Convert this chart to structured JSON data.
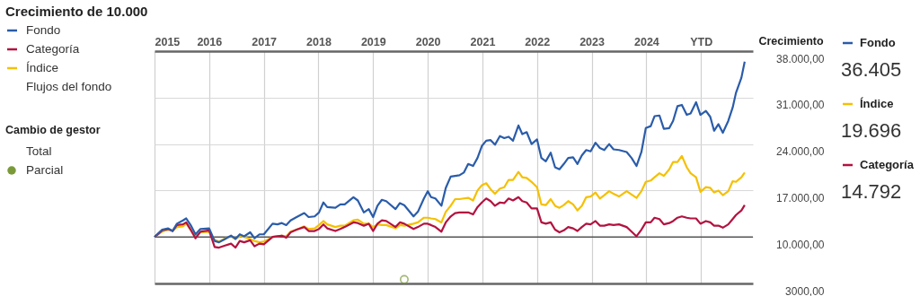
{
  "chart_data": {
    "type": "line",
    "title": "Crecimiento de 10.000",
    "ylabel": "Crecimiento",
    "x": [
      2015.0,
      2015.14,
      2015.25,
      2015.33,
      2015.41,
      2015.52,
      2015.58,
      2015.66,
      2015.75,
      2015.84,
      2016.0,
      2016.1,
      2016.18,
      2016.29,
      2016.4,
      2016.48,
      2016.56,
      2016.64,
      2016.75,
      2016.83,
      2016.92,
      2017.0,
      2017.16,
      2017.25,
      2017.33,
      2017.41,
      2017.49,
      2017.6,
      2017.74,
      2017.82,
      2017.93,
      2018.01,
      2018.09,
      2018.16,
      2018.31,
      2018.4,
      2018.48,
      2018.64,
      2018.72,
      2018.83,
      2018.92,
      2019.0,
      2019.08,
      2019.16,
      2019.24,
      2019.41,
      2019.49,
      2019.57,
      2019.74,
      2019.82,
      2019.93,
      2020.0,
      2020.06,
      2020.14,
      2020.25,
      2020.33,
      2020.42,
      2020.5,
      2020.58,
      2020.66,
      2020.74,
      2020.83,
      2020.91,
      2020.99,
      2021.07,
      2021.15,
      2021.23,
      2021.32,
      2021.4,
      2021.48,
      2021.56,
      2021.66,
      2021.73,
      2021.81,
      2021.9,
      2022.0,
      2022.08,
      2022.16,
      2022.25,
      2022.33,
      2022.41,
      2022.49,
      2022.57,
      2022.66,
      2022.74,
      2022.82,
      2022.9,
      2022.98,
      2023.07,
      2023.15,
      2023.23,
      2023.32,
      2023.4,
      2023.5,
      2023.64,
      2023.73,
      2023.82,
      2023.91,
      2023.99,
      2024.08,
      2024.15,
      2024.24,
      2024.32,
      2024.42,
      2024.49,
      2024.57,
      2024.65,
      2024.74,
      2024.81,
      2024.91,
      2024.99,
      2025.09,
      2025.17,
      2025.24,
      2025.32,
      2025.4,
      2025.5,
      2025.58,
      2025.64,
      2025.74,
      2025.8
    ],
    "series": [
      {
        "name": "Fondo",
        "color": "#2a5caa",
        "values": [
          10000,
          11100,
          11300,
          10900,
          12000,
          12500,
          12800,
          11800,
          10400,
          11200,
          11300,
          9400,
          9200,
          9700,
          10200,
          9700,
          10400,
          10100,
          10700,
          9800,
          10400,
          10400,
          12000,
          11900,
          12100,
          11800,
          12500,
          13000,
          13600,
          13000,
          13100,
          13700,
          15200,
          14500,
          14400,
          14900,
          14900,
          16000,
          15500,
          13700,
          14200,
          13000,
          14700,
          15600,
          15400,
          14200,
          15100,
          14800,
          13100,
          13800,
          15800,
          16900,
          16000,
          15800,
          14700,
          17400,
          19100,
          19200,
          19300,
          19700,
          21000,
          20700,
          21900,
          23700,
          24500,
          24600,
          23900,
          25200,
          24900,
          25100,
          24500,
          26800,
          25500,
          25800,
          24000,
          24700,
          21900,
          21400,
          22700,
          20500,
          20200,
          21000,
          21900,
          22000,
          21000,
          22300,
          23100,
          22900,
          24200,
          23400,
          23100,
          24000,
          23200,
          23100,
          22800,
          21900,
          20700,
          22800,
          26400,
          26700,
          28200,
          28300,
          26300,
          26400,
          27500,
          29700,
          29900,
          28400,
          28600,
          30300,
          28400,
          29000,
          28100,
          26000,
          27000,
          25700,
          27500,
          29500,
          31700,
          34000,
          36400
        ]
      },
      {
        "name": "Categoría",
        "color": "#b3123f",
        "values": [
          10000,
          11000,
          11200,
          10900,
          11800,
          11900,
          12200,
          11100,
          9800,
          10800,
          11000,
          8500,
          8400,
          8700,
          9000,
          8400,
          9400,
          9200,
          9500,
          8600,
          9000,
          8900,
          10000,
          10100,
          10200,
          9900,
          10700,
          11100,
          11500,
          10900,
          10900,
          11200,
          11900,
          11300,
          10900,
          11200,
          11500,
          12200,
          12100,
          11700,
          12000,
          10900,
          12000,
          12500,
          12400,
          11500,
          12200,
          12000,
          11200,
          11500,
          12000,
          12000,
          11800,
          11500,
          10800,
          12200,
          13100,
          13600,
          13700,
          13700,
          13700,
          13400,
          14500,
          15200,
          15800,
          15400,
          14700,
          15200,
          15100,
          15800,
          15500,
          16000,
          15400,
          15200,
          14300,
          14300,
          12200,
          12000,
          12200,
          11100,
          10700,
          11000,
          11500,
          11300,
          10900,
          11500,
          12000,
          11900,
          12400,
          11700,
          11700,
          11900,
          11800,
          11900,
          11500,
          10800,
          10100,
          11100,
          12200,
          12200,
          12900,
          12700,
          11900,
          12100,
          12400,
          12900,
          13100,
          12900,
          12800,
          12800,
          12000,
          12400,
          12200,
          11700,
          11700,
          11400,
          11900,
          12700,
          13300,
          14000,
          14800
        ]
      },
      {
        "name": "Índice",
        "color": "#f5c000",
        "values": [
          10000,
          10800,
          11100,
          10900,
          11500,
          11600,
          12000,
          11100,
          10000,
          10700,
          10800,
          9600,
          9300,
          9800,
          10100,
          9700,
          10100,
          10000,
          9700,
          9400,
          9200,
          9300,
          10000,
          10100,
          10200,
          10100,
          10800,
          11100,
          11600,
          11200,
          11300,
          11800,
          12400,
          11900,
          11500,
          11700,
          11700,
          12500,
          12600,
          12000,
          12000,
          11500,
          11900,
          11800,
          11800,
          11300,
          11800,
          11700,
          12000,
          12200,
          12900,
          12900,
          12800,
          12700,
          12200,
          13800,
          14700,
          15700,
          15700,
          15800,
          15900,
          15500,
          17000,
          17800,
          18100,
          17200,
          16500,
          17300,
          17500,
          18600,
          18600,
          19800,
          19000,
          18900,
          18300,
          17500,
          14900,
          14800,
          15700,
          14700,
          14400,
          14800,
          15400,
          14900,
          14000,
          14700,
          16000,
          16100,
          16700,
          15800,
          16300,
          16900,
          16500,
          16100,
          16900,
          16400,
          15900,
          16900,
          18300,
          18500,
          19000,
          19600,
          19200,
          20200,
          21300,
          21300,
          22200,
          20500,
          19600,
          19000,
          16800,
          17500,
          17400,
          16700,
          17000,
          16300,
          16900,
          18400,
          18300,
          19000,
          19700
        ]
      },
      {
        "name": "Parcial",
        "type": "scatter",
        "marker": "circle",
        "color": "#7a9a3a",
        "x": [
          2019.57
        ],
        "values": [
          3600
        ]
      }
    ],
    "xlim": [
      2015,
      2025.95
    ],
    "xticks": [
      2015,
      2016,
      2017,
      2018,
      2019,
      2020,
      2021,
      2022,
      2023,
      2024,
      {
        "value": 2025,
        "label": "YTD"
      }
    ],
    "ylim": [
      3000,
      38000
    ],
    "yticks": [
      {
        "value": 38000,
        "label": "38.000,00"
      },
      {
        "value": 31000,
        "label": "31.000,00"
      },
      {
        "value": 24000,
        "label": "24.000,00"
      },
      {
        "value": 17000,
        "label": "17.000,00"
      },
      {
        "value": 10000,
        "label": "10.000,00"
      },
      {
        "value": 3000,
        "label": "3000,00"
      }
    ],
    "ref_lines": [
      {
        "axis": "y",
        "value": 10000,
        "color": "#555555"
      }
    ],
    "grid": true,
    "legend": "left",
    "annotations": [
      "Flujos del fondo",
      "Cambio de gestor",
      "Total",
      "36.405",
      "19.696",
      "14.792"
    ]
  }
}
